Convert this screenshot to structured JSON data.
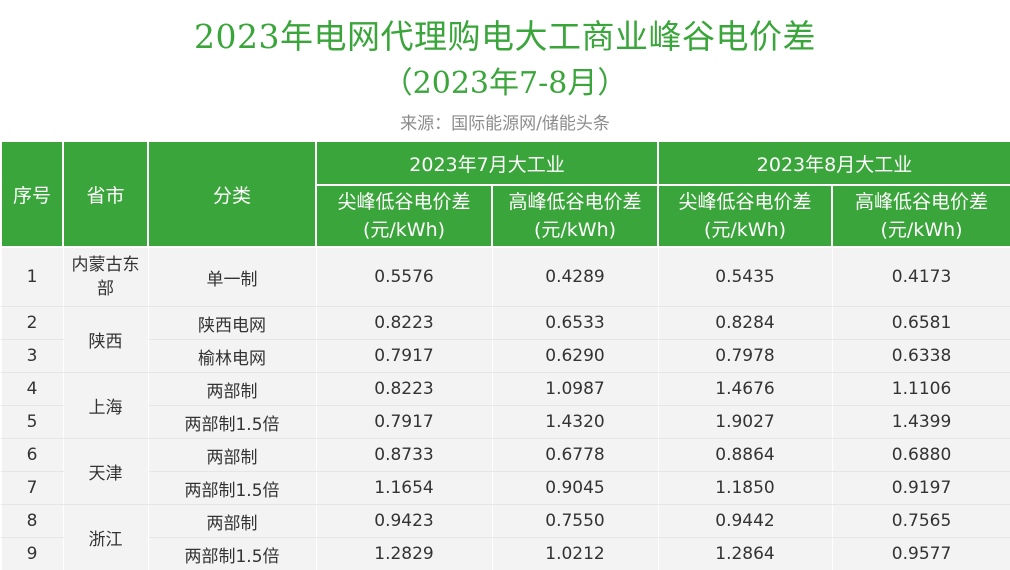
{
  "title": {
    "line1": "2023年电网代理购电大工商业峰谷电价差",
    "line2": "（2023年7-8月）",
    "source": "来源：国际能源网/储能头条"
  },
  "colors": {
    "accent": "#3aa53a",
    "cell_bg": "#f3f3f3"
  },
  "table": {
    "headers": {
      "index": "序号",
      "province": "省市",
      "category": "分类",
      "july_group": "2023年7月大工业",
      "august_group": "2023年8月大工业",
      "jul_peak_valley": "尖峰低谷电价差(元/kWh)",
      "jul_high_valley": "高峰低谷电价差(元/kWh)",
      "aug_peak_valley": "尖峰低谷电价差(元/kWh)",
      "aug_high_valley": "高峰低谷电价差(元/kWh)"
    },
    "rows": [
      {
        "index": "1",
        "province": "内蒙古东部",
        "category": "单一制",
        "jul_peak": "0.5576",
        "jul_high": "0.4289",
        "aug_peak": "0.5435",
        "aug_high": "0.4173"
      },
      {
        "index": "2",
        "province": "陕西",
        "category": "陕西电网",
        "jul_peak": "0.8223",
        "jul_high": "0.6533",
        "aug_peak": "0.8284",
        "aug_high": "0.6581"
      },
      {
        "index": "3",
        "province": "陕西",
        "category": "榆林电网",
        "jul_peak": "0.7917",
        "jul_high": "0.6290",
        "aug_peak": "0.7978",
        "aug_high": "0.6338"
      },
      {
        "index": "4",
        "province": "上海",
        "category": "两部制",
        "jul_peak": "0.8223",
        "jul_high": "1.0987",
        "aug_peak": "1.4676",
        "aug_high": "1.1106"
      },
      {
        "index": "5",
        "province": "上海",
        "category": "两部制1.5倍",
        "jul_peak": "0.7917",
        "jul_high": "1.4320",
        "aug_peak": "1.9027",
        "aug_high": "1.4399"
      },
      {
        "index": "6",
        "province": "天津",
        "category": "两部制",
        "jul_peak": "0.8733",
        "jul_high": "0.6778",
        "aug_peak": "0.8864",
        "aug_high": "0.6880"
      },
      {
        "index": "7",
        "province": "天津",
        "category": "两部制1.5倍",
        "jul_peak": "1.1654",
        "jul_high": "0.9045",
        "aug_peak": "1.1850",
        "aug_high": "0.9197"
      },
      {
        "index": "8",
        "province": "浙江",
        "category": "两部制",
        "jul_peak": "0.9423",
        "jul_high": "0.7550",
        "aug_peak": "0.9442",
        "aug_high": "0.7565"
      },
      {
        "index": "9",
        "province": "浙江",
        "category": "两部制1.5倍",
        "jul_peak": "1.2829",
        "jul_high": "1.0212",
        "aug_peak": "1.2864",
        "aug_high": "0.9577"
      }
    ]
  }
}
